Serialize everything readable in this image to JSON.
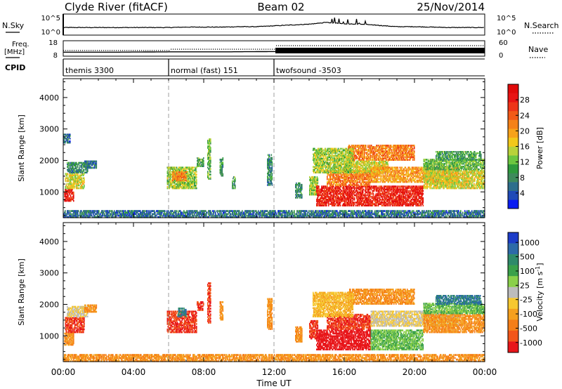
{
  "header": {
    "station": "Clyde River (fitACF)",
    "beam": "Beam 02",
    "date": "25/Nov/2014"
  },
  "sky_panel": {
    "left_label": "N.Sky",
    "right_label": "N.Search",
    "left_ticks": [
      "10^5",
      "10^0"
    ],
    "right_ticks": [
      "10^5",
      "10^0"
    ]
  },
  "freq_panel": {
    "left_label_1": "Freq.",
    "left_label_2": "[MHz]",
    "right_label": "Nave",
    "left_ticks": [
      "18",
      "8"
    ],
    "right_ticks": [
      "60",
      "0"
    ]
  },
  "cpid_panel": {
    "label": "CPID",
    "segments": [
      {
        "start_hour": 0,
        "name": "themis 3300"
      },
      {
        "start_hour": 6,
        "name": "normal (fast) 151"
      },
      {
        "start_hour": 12,
        "name": "twofsound -3503"
      }
    ]
  },
  "time_axis": {
    "title": "Time UT",
    "range_hours": [
      0,
      24
    ],
    "tick_hours": [
      0,
      4,
      8,
      12,
      16,
      20,
      24
    ],
    "tick_labels": [
      "00:00",
      "04:00",
      "08:00",
      "12:00",
      "16:00",
      "20:00",
      "00:00"
    ]
  },
  "range_axis": {
    "title": "Slant Range [km]",
    "range_km": [
      180,
      4600
    ],
    "tick_values": [
      1000,
      2000,
      3000,
      4000
    ],
    "tick_labels": [
      "1000",
      "2000",
      "3000",
      "4000"
    ]
  },
  "power_colorbar": {
    "title": "Power [dB]",
    "range": [
      0,
      32
    ],
    "tick_values": [
      4,
      8,
      12,
      16,
      20,
      24,
      28
    ],
    "tick_labels": [
      "4",
      "8",
      "12",
      "16",
      "20",
      "24",
      "28"
    ],
    "colors": [
      "#0a1cf0",
      "#1f4ab8",
      "#2d6e8c",
      "#3e8a5c",
      "#2e9a3c",
      "#6cc640",
      "#b8d23a",
      "#f2c81a",
      "#f7a21a",
      "#f58218",
      "#f25a18",
      "#ee3418",
      "#e81414",
      "#e00a0a"
    ]
  },
  "velocity_colorbar": {
    "title": "Velocity [m s^-1]",
    "tick_labels": [
      "1000",
      "500",
      "100",
      "25",
      "-25",
      "-100",
      "-500",
      "-1000"
    ],
    "colors": [
      "#1c3cc8",
      "#2c6aa8",
      "#2e8a6a",
      "#3aa04a",
      "#8ad04a",
      "#bcbcbc",
      "#f6c830",
      "#f5a01e",
      "#f57e18",
      "#f2561a",
      "#e8161a"
    ]
  },
  "chart_data": {
    "type": "heatmap",
    "title": "Clyde River (fitACF)",
    "xlabel": "Time UT",
    "ylabel": "Slant Range [km]",
    "xlim": [
      0,
      24
    ],
    "ylim": [
      180,
      4600
    ],
    "cpid_change_hours": [
      6,
      12
    ],
    "noise_sky": [
      [
        0,
        1.8
      ],
      [
        1,
        1.8
      ],
      [
        2,
        1.8
      ],
      [
        3,
        1.8
      ],
      [
        4,
        1.8
      ],
      [
        5,
        1.8
      ],
      [
        6,
        1.8
      ],
      [
        7,
        1.9
      ],
      [
        8,
        1.9
      ],
      [
        9,
        1.9
      ],
      [
        10,
        2.0
      ],
      [
        11,
        2.0
      ],
      [
        12,
        2.2
      ],
      [
        13,
        2.4
      ],
      [
        14,
        2.6
      ],
      [
        15,
        3.0
      ],
      [
        16,
        2.7
      ],
      [
        17,
        2.6
      ],
      [
        18,
        2.3
      ],
      [
        19,
        2.0
      ],
      [
        20,
        2.0
      ],
      [
        21,
        1.9
      ],
      [
        22,
        1.8
      ],
      [
        23,
        1.8
      ],
      [
        24,
        1.8
      ]
    ],
    "frequency_mhz": [
      [
        0,
        10.6
      ],
      [
        3,
        10.6
      ],
      [
        6,
        10.8
      ],
      [
        9,
        10.8
      ],
      [
        12,
        11.0
      ],
      [
        16,
        11.6
      ],
      [
        20,
        11.6
      ],
      [
        24,
        11.6
      ]
    ],
    "nave": [
      [
        0,
        22
      ],
      [
        6,
        22
      ],
      [
        6.1,
        27
      ],
      [
        12,
        27
      ],
      [
        12.1,
        41
      ],
      [
        24,
        41
      ]
    ],
    "power_patches": [
      {
        "t0": 0.05,
        "t1": 0.6,
        "r0": 700,
        "r1": 1100,
        "power": 28
      },
      {
        "t0": 0.1,
        "t1": 1.2,
        "r0": 1100,
        "r1": 1600,
        "power": 16
      },
      {
        "t0": 0.2,
        "t1": 1.4,
        "r0": 1600,
        "r1": 1950,
        "power": 8
      },
      {
        "t0": 0.0,
        "t1": 0.4,
        "r0": 2550,
        "r1": 2850,
        "power": 6
      },
      {
        "t0": 1.2,
        "t1": 1.9,
        "r0": 1750,
        "r1": 2000,
        "power": 6
      },
      {
        "t0": 5.9,
        "t1": 7.6,
        "r0": 1100,
        "r1": 1800,
        "power": 14
      },
      {
        "t0": 6.2,
        "t1": 7.0,
        "r0": 1350,
        "r1": 1650,
        "power": 22
      },
      {
        "t0": 7.6,
        "t1": 8.0,
        "r0": 1800,
        "r1": 2100,
        "power": 10
      },
      {
        "t0": 8.2,
        "t1": 8.4,
        "r0": 1400,
        "r1": 2700,
        "power": 12
      },
      {
        "t0": 8.9,
        "t1": 9.1,
        "r0": 1500,
        "r1": 2100,
        "power": 10
      },
      {
        "t0": 9.6,
        "t1": 9.8,
        "r0": 1100,
        "r1": 1500,
        "power": 10
      },
      {
        "t0": 11.6,
        "t1": 11.9,
        "r0": 1200,
        "r1": 2200,
        "power": 8
      },
      {
        "t0": 13.2,
        "t1": 13.6,
        "r0": 800,
        "r1": 1300,
        "power": 8
      },
      {
        "t0": 14.0,
        "t1": 14.5,
        "r0": 900,
        "r1": 1500,
        "power": 14
      },
      {
        "t0": 14.4,
        "t1": 20.5,
        "r0": 550,
        "r1": 1200,
        "power": 28
      },
      {
        "t0": 15.0,
        "t1": 17.5,
        "r0": 1200,
        "r1": 1700,
        "power": 22
      },
      {
        "t0": 16.0,
        "t1": 18.5,
        "r0": 1600,
        "r1": 2000,
        "power": 16
      },
      {
        "t0": 17.5,
        "t1": 22.5,
        "r0": 1300,
        "r1": 1800,
        "power": 20
      },
      {
        "t0": 20.5,
        "t1": 24.0,
        "r0": 1100,
        "r1": 1700,
        "power": 16
      },
      {
        "t0": 20.5,
        "t1": 24.0,
        "r0": 1700,
        "r1": 2050,
        "power": 12
      },
      {
        "t0": 21.2,
        "t1": 23.8,
        "r0": 2000,
        "r1": 2300,
        "power": 10
      },
      {
        "t0": 16.2,
        "t1": 20.0,
        "r0": 2000,
        "r1": 2500,
        "power": 22
      },
      {
        "t0": 14.2,
        "t1": 16.5,
        "r0": 1600,
        "r1": 2400,
        "power": 14
      },
      {
        "t0": 0.0,
        "t1": 24.0,
        "r0": 180,
        "r1": 420,
        "power": 6
      }
    ],
    "velocity_patches": [
      {
        "t0": 0.05,
        "t1": 0.6,
        "r0": 700,
        "r1": 1100,
        "velocity": -100
      },
      {
        "t0": 0.1,
        "t1": 1.2,
        "r0": 1100,
        "r1": 1600,
        "velocity": -500
      },
      {
        "t0": 0.2,
        "t1": 1.4,
        "r0": 1600,
        "r1": 1950,
        "velocity": 25
      },
      {
        "t0": 1.2,
        "t1": 1.9,
        "r0": 1750,
        "r1": 2000,
        "velocity": -100
      },
      {
        "t0": 5.9,
        "t1": 7.6,
        "r0": 1100,
        "r1": 1800,
        "velocity": -500
      },
      {
        "t0": 6.5,
        "t1": 7.0,
        "r0": 1600,
        "r1": 1900,
        "velocity": 500
      },
      {
        "t0": 7.6,
        "t1": 8.0,
        "r0": 1800,
        "r1": 2100,
        "velocity": -500
      },
      {
        "t0": 8.2,
        "t1": 8.4,
        "r0": 1400,
        "r1": 2700,
        "velocity": -500
      },
      {
        "t0": 8.9,
        "t1": 9.1,
        "r0": 1500,
        "r1": 2100,
        "velocity": -100
      },
      {
        "t0": 11.6,
        "t1": 11.9,
        "r0": 1200,
        "r1": 2200,
        "velocity": -100
      },
      {
        "t0": 13.2,
        "t1": 13.6,
        "r0": 800,
        "r1": 1300,
        "velocity": -100
      },
      {
        "t0": 14.0,
        "t1": 14.5,
        "r0": 900,
        "r1": 1500,
        "velocity": -500
      },
      {
        "t0": 14.4,
        "t1": 17.5,
        "r0": 550,
        "r1": 1200,
        "velocity": -1000
      },
      {
        "t0": 17.5,
        "t1": 20.5,
        "r0": 550,
        "r1": 1200,
        "velocity": 100
      },
      {
        "t0": 15.0,
        "t1": 17.5,
        "r0": 1200,
        "r1": 1700,
        "velocity": -500
      },
      {
        "t0": 17.5,
        "t1": 22.5,
        "r0": 1300,
        "r1": 1800,
        "velocity": 25
      },
      {
        "t0": 20.5,
        "t1": 24.0,
        "r0": 1100,
        "r1": 1700,
        "velocity": -100
      },
      {
        "t0": 20.5,
        "t1": 24.0,
        "r0": 1700,
        "r1": 2050,
        "velocity": 100
      },
      {
        "t0": 21.2,
        "t1": 23.8,
        "r0": 2000,
        "r1": 2300,
        "velocity": 500
      },
      {
        "t0": 16.2,
        "t1": 20.0,
        "r0": 2000,
        "r1": 2500,
        "velocity": -100
      },
      {
        "t0": 14.2,
        "t1": 16.5,
        "r0": 1600,
        "r1": 2400,
        "velocity": -25
      },
      {
        "t0": 0.0,
        "t1": 24.0,
        "r0": 180,
        "r1": 420,
        "velocity": -100
      }
    ]
  }
}
